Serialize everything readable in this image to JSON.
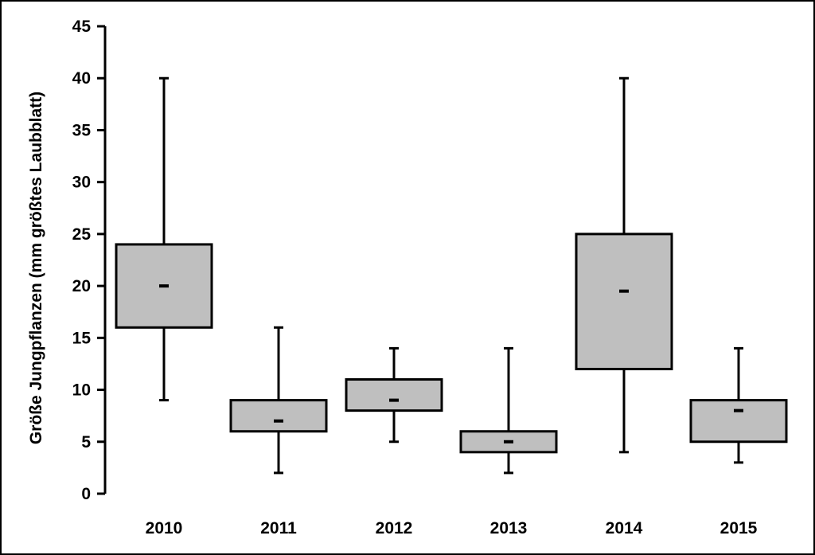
{
  "chart_data": {
    "type": "boxplot",
    "title": "",
    "xlabel": "",
    "ylabel": "Größe Jungpflanzen (mm größtes Laubblatt)",
    "ylim": [
      0,
      45
    ],
    "yticks": [
      0,
      5,
      10,
      15,
      20,
      25,
      30,
      35,
      40,
      45
    ],
    "grid": false,
    "legend": "none",
    "colors": {
      "box_fill": "#bfbfbf",
      "stroke": "#000000"
    },
    "categories": [
      "2010",
      "2011",
      "2012",
      "2013",
      "2014",
      "2015"
    ],
    "boxes": [
      {
        "category": "2010",
        "min": 9,
        "q1": 16,
        "median": 20,
        "q3": 24,
        "max": 40
      },
      {
        "category": "2011",
        "min": 2,
        "q1": 6,
        "median": 7,
        "q3": 9,
        "max": 16
      },
      {
        "category": "2012",
        "min": 5,
        "q1": 8,
        "median": 9,
        "q3": 11,
        "max": 14
      },
      {
        "category": "2013",
        "min": 2,
        "q1": 4,
        "median": 5,
        "q3": 6,
        "max": 14
      },
      {
        "category": "2014",
        "min": 4,
        "q1": 12,
        "median": 19.5,
        "q3": 25,
        "max": 40
      },
      {
        "category": "2015",
        "min": 3,
        "q1": 5,
        "median": 8,
        "q3": 9,
        "max": 14
      }
    ]
  }
}
